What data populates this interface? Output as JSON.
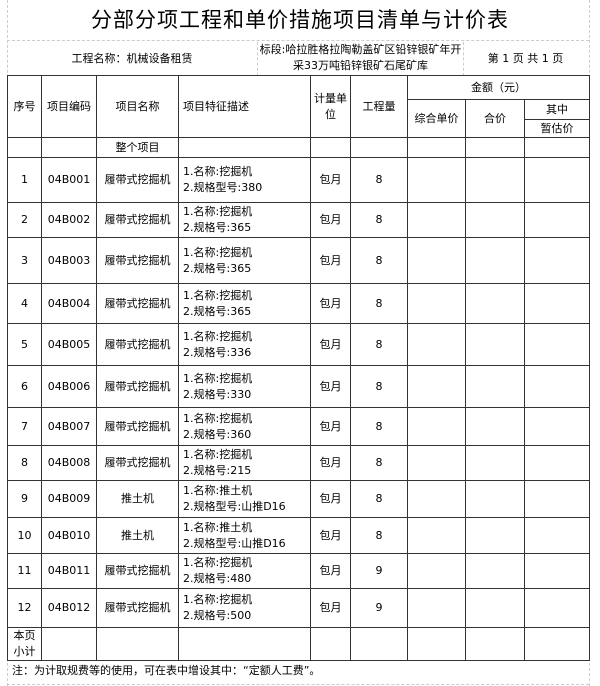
{
  "title": "分部分项工程和单价措施项目清单与计价表",
  "info": {
    "project_name": "工程名称：机械设备租赁",
    "section_line1": "标段:哈拉胜格拉陶勒盖矿区铅锌银矿年开",
    "section_line2": "采33万吨铅锌银矿石尾矿库",
    "page": "第 1 页  共 1 页"
  },
  "headers": {
    "seq": "序号",
    "code": "项目编码",
    "name": "项目名称",
    "desc": "项目特征描述",
    "unit": "计量单位",
    "qty": "工程量",
    "amount": "金额（元）",
    "unit_price": "综合单价",
    "total": "合价",
    "of_which": "其中",
    "provisional": "暂估价"
  },
  "whole_project": "整个项目",
  "rows": [
    {
      "seq": "1",
      "code": "04B001",
      "name": "履带式挖掘机",
      "d1": "1.名称:挖掘机",
      "d2": "2.规格型号:380",
      "unit": "包月",
      "qty": "8"
    },
    {
      "seq": "2",
      "code": "04B002",
      "name": "履带式挖掘机",
      "d1": "1.名称:挖掘机",
      "d2": "2.规格号:365",
      "unit": "包月",
      "qty": "8"
    },
    {
      "seq": "3",
      "code": "04B003",
      "name": "履带式挖掘机",
      "d1": "1.名称:挖掘机",
      "d2": "2.规格号:365",
      "unit": "包月",
      "qty": "8"
    },
    {
      "seq": "4",
      "code": "04B004",
      "name": "履带式挖掘机",
      "d1": "1.名称:挖掘机",
      "d2": "2.规格号:365",
      "unit": "包月",
      "qty": "8"
    },
    {
      "seq": "5",
      "code": "04B005",
      "name": "履带式挖掘机",
      "d1": "1.名称:挖掘机",
      "d2": "2.规格号:336",
      "unit": "包月",
      "qty": "8"
    },
    {
      "seq": "6",
      "code": "04B006",
      "name": "履带式挖掘机",
      "d1": "1.名称:挖掘机",
      "d2": "2.规格号:330",
      "unit": "包月",
      "qty": "8"
    },
    {
      "seq": "7",
      "code": "04B007",
      "name": "履带式挖掘机",
      "d1": "1.名称:挖掘机",
      "d2": "2.规格号:360",
      "unit": "包月",
      "qty": "8"
    },
    {
      "seq": "8",
      "code": "04B008",
      "name": "履带式挖掘机",
      "d1": "1.名称:挖掘机",
      "d2": "2.规格号:215",
      "unit": "包月",
      "qty": "8"
    },
    {
      "seq": "9",
      "code": "04B009",
      "name": "推土机",
      "d1": "1.名称:推土机",
      "d2": "2.规格型号:山推D16",
      "unit": "包月",
      "qty": "8"
    },
    {
      "seq": "10",
      "code": "04B010",
      "name": "推土机",
      "d1": "1.名称:推土机",
      "d2": "2.规格型号:山推D16",
      "unit": "包月",
      "qty": "8"
    },
    {
      "seq": "11",
      "code": "04B011",
      "name": "履带式挖掘机",
      "d1": "1.名称:挖掘机",
      "d2": "2.规格号:480",
      "unit": "包月",
      "qty": "9"
    },
    {
      "seq": "12",
      "code": "04B012",
      "name": "履带式挖掘机",
      "d1": "1.名称:挖掘机",
      "d2": "2.规格号:500",
      "unit": "包月",
      "qty": "9"
    }
  ],
  "subtotal_line1": "本页",
  "subtotal_line2": "小计",
  "note": "注：为计取规费等的使用，可在表中增设其中：“定额人工费”。"
}
